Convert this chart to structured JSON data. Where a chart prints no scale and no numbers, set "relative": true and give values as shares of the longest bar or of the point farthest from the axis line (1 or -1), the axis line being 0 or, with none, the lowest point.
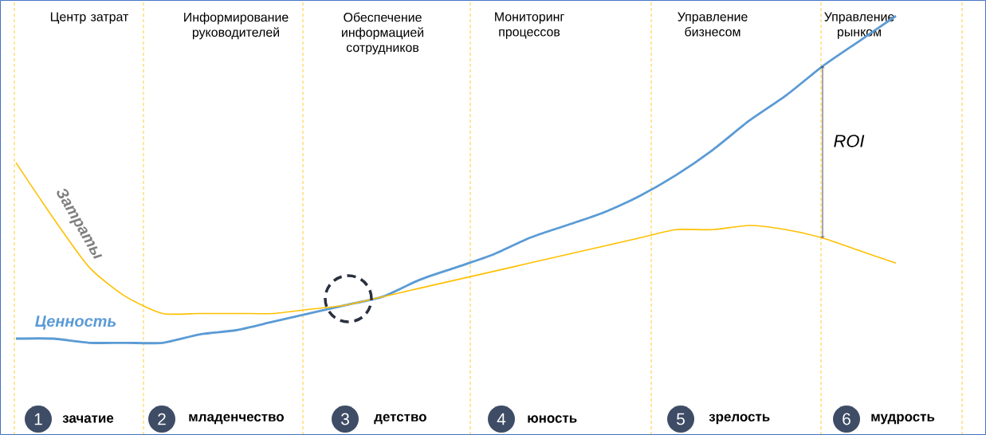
{
  "chart_data": {
    "type": "line",
    "relative": true,
    "categories": [
      null,
      null,
      "Центр затрат",
      null,
      null,
      null,
      "Информирование руководителей",
      null,
      null,
      null,
      "Обеспечение информацией сотрудников",
      null,
      null,
      null,
      "Мониторинг процессов",
      null,
      null,
      null,
      null,
      "Управление бизнесом",
      null,
      null,
      null,
      "Управление рынком",
      null
    ],
    "series": [
      {
        "name": "Ценность",
        "color": "#5b9bd5",
        "values": [
          0.23,
          0.23,
          0.22,
          0.22,
          0.22,
          0.24,
          0.25,
          0.27,
          0.29,
          0.31,
          0.33,
          0.37,
          0.4,
          0.43,
          0.47,
          0.5,
          0.53,
          0.57,
          0.62,
          0.68,
          0.75,
          0.81,
          0.88,
          0.94,
          1.0
        ]
      },
      {
        "name": "Затраты",
        "color": "#ffc000",
        "values": [
          0.65,
          0.52,
          0.4,
          0.33,
          0.29,
          0.29,
          0.29,
          0.29,
          0.3,
          0.31,
          0.33,
          0.35,
          0.37,
          0.39,
          0.41,
          0.43,
          0.45,
          0.47,
          0.49,
          0.49,
          0.5,
          0.49,
          0.47,
          0.44,
          0.41
        ]
      }
    ],
    "annotations": [
      "ROI",
      "1",
      "зачатие",
      "2",
      "младенчество",
      "3",
      "детство",
      "4",
      "юность",
      "5",
      "зрелость",
      "6",
      "мудрость"
    ]
  }
}
